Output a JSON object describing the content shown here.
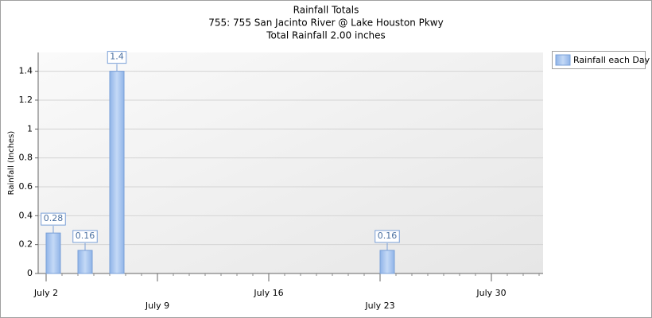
{
  "chart_data": {
    "type": "bar",
    "title": "Rainfall Totals",
    "subtitle": "755: 755 San Jacinto River @ Lake Houston Pkwy",
    "annotation": "Total Rainfall 2.00 inches",
    "y_label": "Rainfall (Inches)",
    "x": [
      2,
      4,
      6,
      23
    ],
    "series": [
      {
        "name": "Rainfall each Day",
        "color": "#8fb4e8",
        "values": [
          0.28,
          0.16,
          1.4,
          0.16
        ],
        "value_labels": [
          "0.28",
          "0.16",
          "1.4",
          "0.16"
        ]
      }
    ],
    "xlim": [
      1.5,
      33.25
    ],
    "xticks": [
      {
        "value": 2,
        "label": "July 2"
      },
      {
        "value": 9,
        "label": "July 9"
      },
      {
        "value": 16,
        "label": "July 16"
      },
      {
        "value": 23,
        "label": "July 23"
      },
      {
        "value": 30,
        "label": "July 30"
      }
    ],
    "ylim": [
      0,
      1.53
    ],
    "yticks": [
      0,
      0.2,
      0.4,
      0.6,
      0.8,
      1,
      1.2,
      1.4
    ],
    "grid": true,
    "legend": "right"
  }
}
